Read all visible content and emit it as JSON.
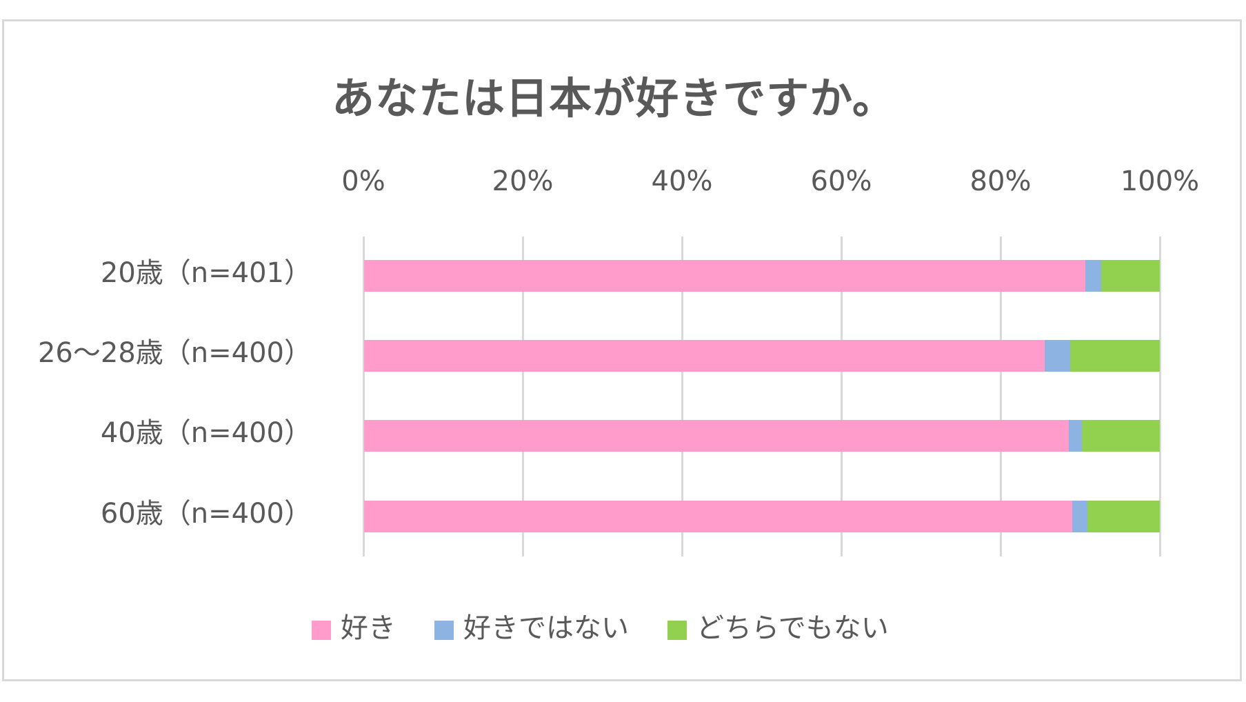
{
  "chart": {
    "title": "あなたは日本が好きですか。",
    "axis_ticks": [
      "0%",
      "20%",
      "40%",
      "60%",
      "80%",
      "100%"
    ],
    "categories": [
      "20歳（n=401）",
      "26～28歳（n=400）",
      "40歳（n=400）",
      "60歳（n=400）"
    ],
    "legend": [
      {
        "label": "好き",
        "color": "#ff9ccb"
      },
      {
        "label": "好きではない",
        "color": "#8db3e2"
      },
      {
        "label": "どちらでもない",
        "color": "#92d050"
      }
    ]
  },
  "chart_data": {
    "type": "bar",
    "orientation": "horizontal",
    "stacked": "percent",
    "title": "あなたは日本が好きですか。",
    "xlabel": "",
    "ylabel": "",
    "xlim": [
      0,
      100
    ],
    "x_tick_labels": [
      "0%",
      "20%",
      "40%",
      "60%",
      "80%",
      "100%"
    ],
    "x_axis_position": "top",
    "grid": true,
    "legend_position": "bottom",
    "categories": [
      "20歳（n=401）",
      "26～28歳（n=400）",
      "40歳（n=400）",
      "60歳（n=400）"
    ],
    "series": [
      {
        "name": "好き",
        "color": "#ff9ccb",
        "values": [
          90.6,
          85.5,
          88.6,
          89.0
        ]
      },
      {
        "name": "好きではない",
        "color": "#8db3e2",
        "values": [
          2.0,
          3.2,
          1.6,
          1.9
        ]
      },
      {
        "name": "どちらでもない",
        "color": "#92d050",
        "values": [
          7.4,
          11.3,
          9.8,
          9.1
        ]
      }
    ]
  }
}
